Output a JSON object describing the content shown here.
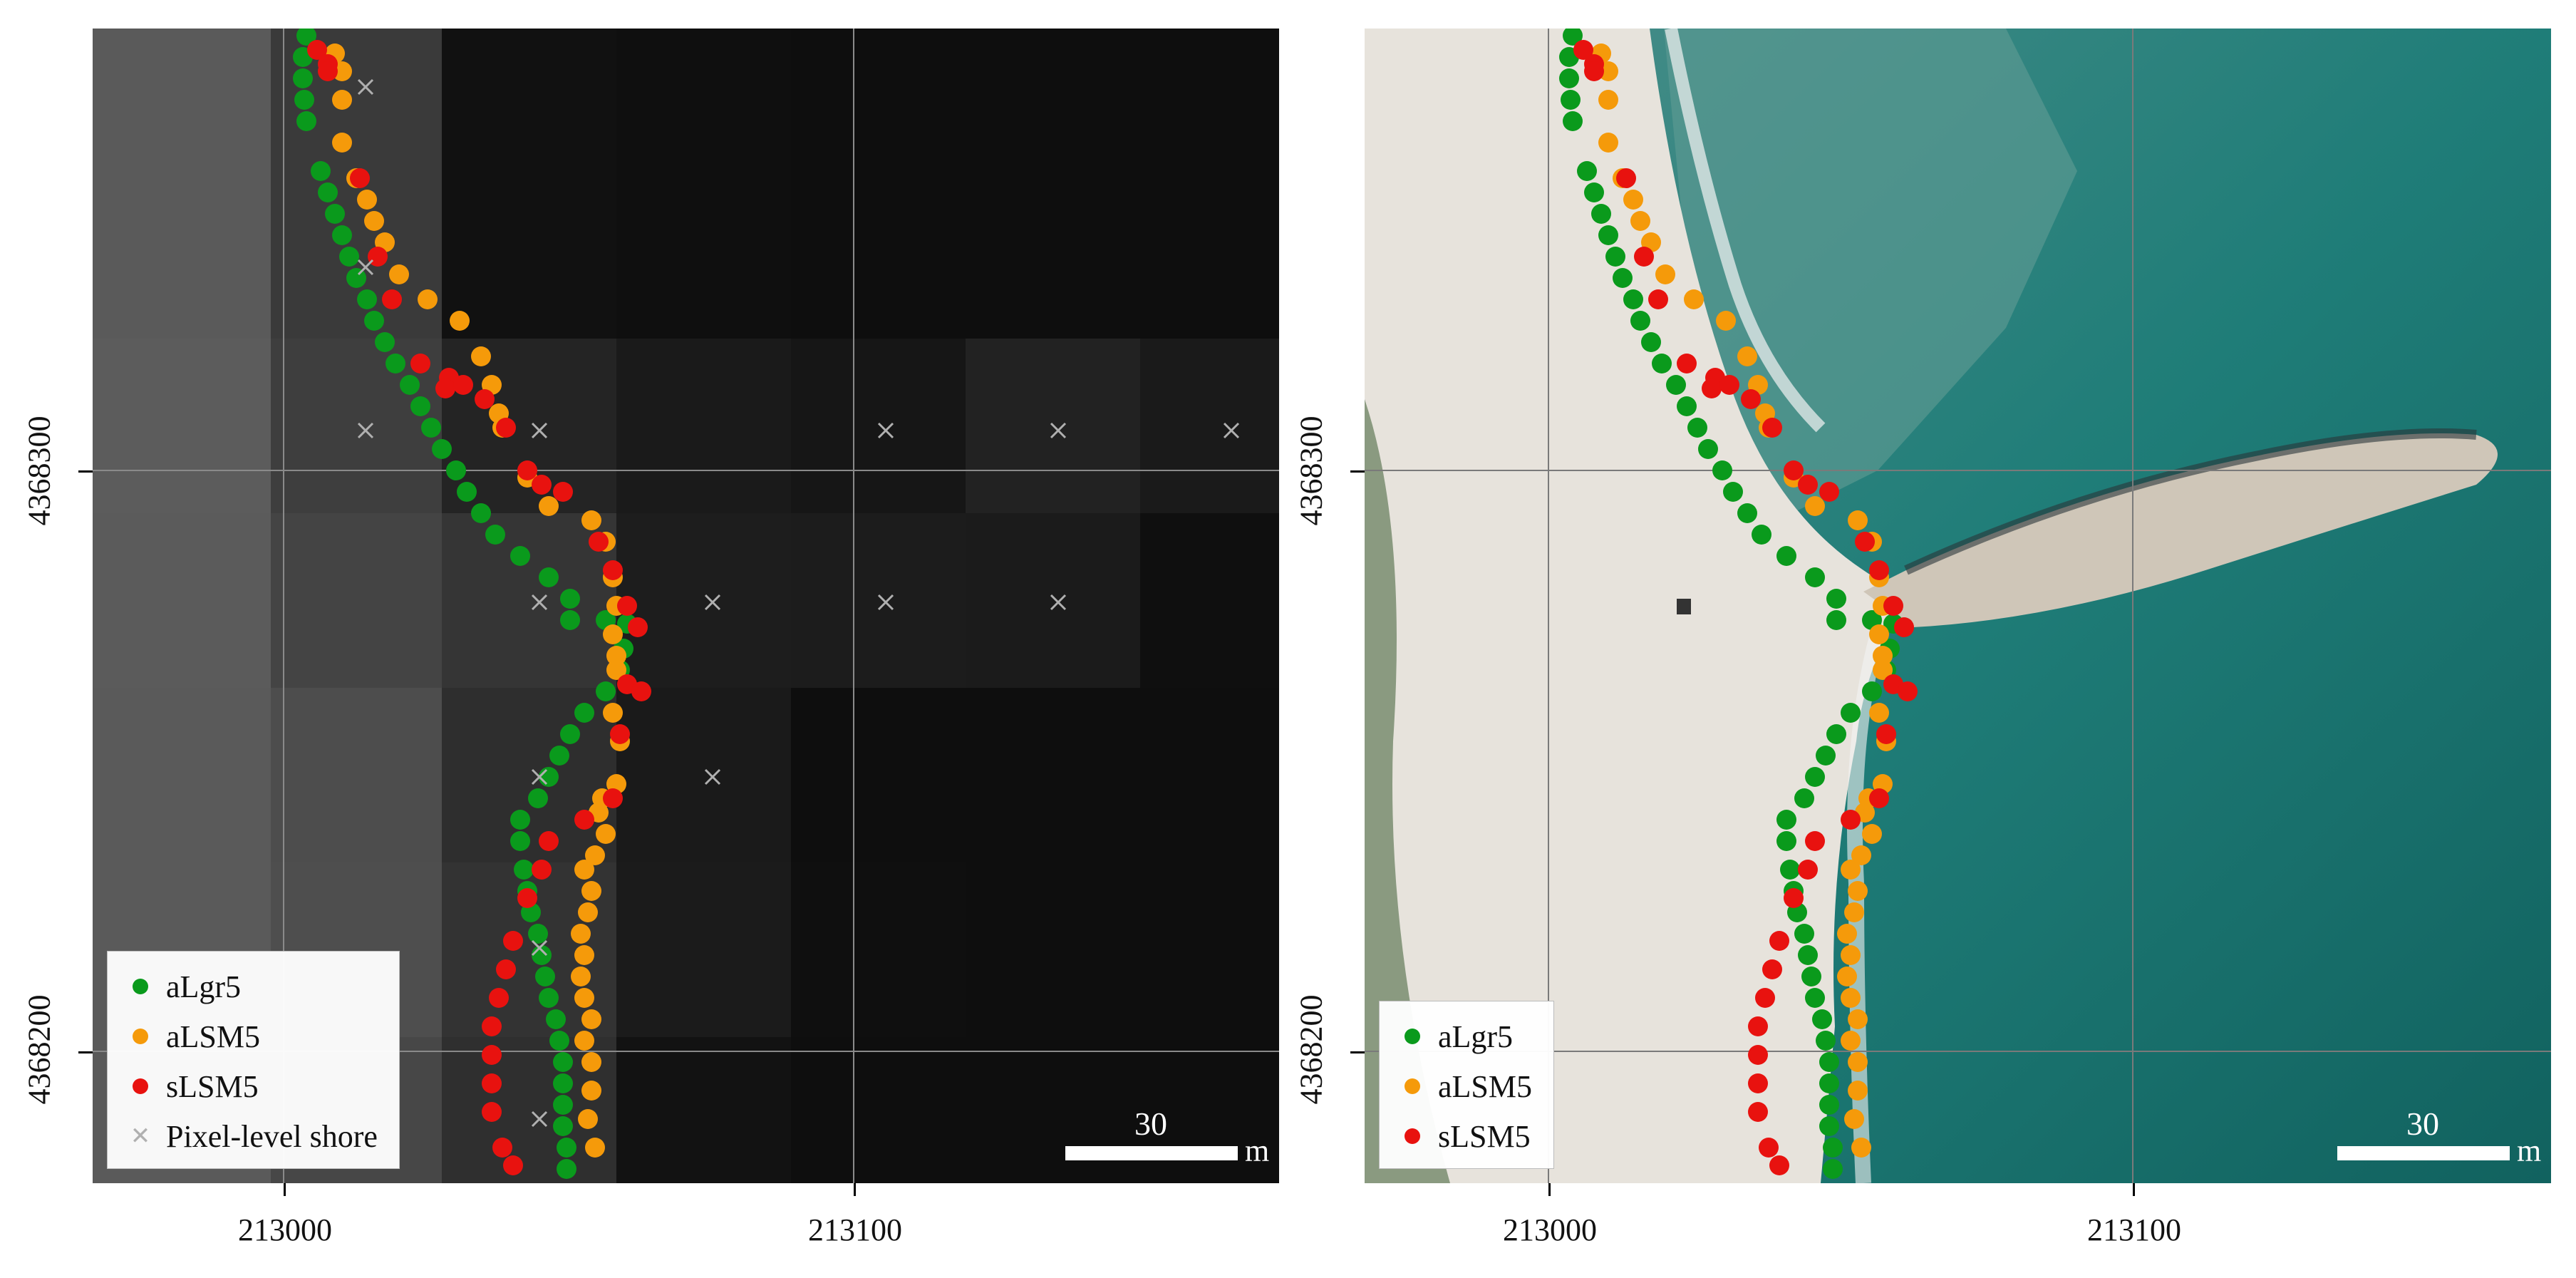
{
  "map": {
    "colors": {
      "aLgr5": "#0a9a1c",
      "aLSM5": "#f59a0a",
      "sLSM5": "#e8120f",
      "pixel_shore": "#b0b0b0"
    },
    "panels": [
      {
        "id": "left",
        "basemap": "grayscale-pixel-image",
        "x_ticks": [
          "213000",
          "213100"
        ],
        "y_ticks": [
          "4368300",
          "4368200"
        ],
        "scale": {
          "value": "30",
          "unit": "m"
        },
        "legend": [
          {
            "label": "aLgr5",
            "symbol": "green-dot"
          },
          {
            "label": "aLSM5",
            "symbol": "orange-dot"
          },
          {
            "label": "sLSM5",
            "symbol": "red-dot"
          },
          {
            "label": "Pixel-level shore",
            "symbol": "gray-x"
          }
        ]
      },
      {
        "id": "right",
        "basemap": "aerial-orthophoto",
        "x_ticks": [
          "213000",
          "213100"
        ],
        "y_ticks": [
          "4368300",
          "4368200"
        ],
        "scale": {
          "value": "30",
          "unit": "m"
        },
        "legend": [
          {
            "label": "aLgr5",
            "symbol": "green-dot"
          },
          {
            "label": "aLSM5",
            "symbol": "orange-dot"
          },
          {
            "label": "sLSM5",
            "symbol": "red-dot"
          }
        ]
      }
    ]
  }
}
